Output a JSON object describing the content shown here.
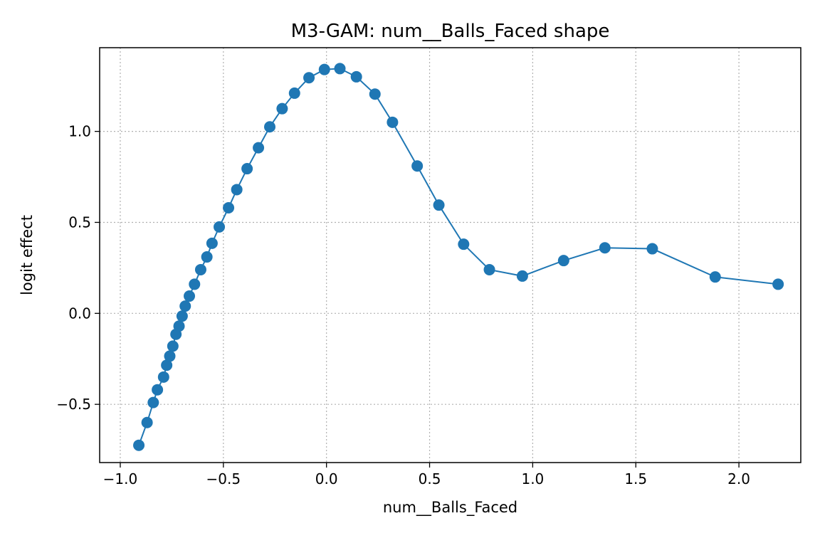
{
  "chart_data": {
    "type": "line",
    "title": "M3-GAM: num__Balls_Faced shape",
    "xlabel": "num__Balls_Faced",
    "ylabel": "logit effect",
    "xlim": [
      -1.1,
      2.3
    ],
    "ylim": [
      -0.82,
      1.46
    ],
    "xticks": [
      -1.0,
      -0.5,
      0.0,
      0.5,
      1.0,
      1.5,
      2.0
    ],
    "xtick_labels": [
      "−1.0",
      "−0.5",
      "0.0",
      "0.5",
      "1.0",
      "1.5",
      "2.0"
    ],
    "yticks": [
      -0.5,
      0.0,
      0.5,
      1.0
    ],
    "ytick_labels": [
      "−0.5",
      "0.0",
      "0.5",
      "1.0"
    ],
    "grid": true,
    "grid_style": "dotted",
    "marker": "circle",
    "color": "#1f77b4",
    "series": [
      {
        "x": [
          -0.91,
          -0.87,
          -0.84,
          -0.82,
          -0.79,
          -0.775,
          -0.76,
          -0.745,
          -0.73,
          -0.715,
          -0.7,
          -0.685,
          -0.665,
          -0.64,
          -0.61,
          -0.58,
          -0.555,
          -0.52,
          -0.475,
          -0.435,
          -0.385,
          -0.33,
          -0.275,
          -0.215,
          -0.155,
          -0.085,
          -0.01,
          0.065,
          0.145,
          0.235,
          0.32,
          0.44,
          0.545,
          0.665,
          0.79,
          0.95,
          1.15,
          1.35,
          1.58,
          1.885,
          2.19
        ],
        "y": [
          -0.725,
          -0.6,
          -0.49,
          -0.42,
          -0.35,
          -0.285,
          -0.235,
          -0.18,
          -0.115,
          -0.07,
          -0.015,
          0.04,
          0.095,
          0.16,
          0.24,
          0.31,
          0.385,
          0.475,
          0.58,
          0.68,
          0.795,
          0.91,
          1.025,
          1.125,
          1.21,
          1.295,
          1.34,
          1.345,
          1.3,
          1.205,
          1.05,
          0.81,
          0.595,
          0.38,
          0.24,
          0.205,
          0.29,
          0.36,
          0.355,
          0.2,
          0.16
        ]
      }
    ]
  }
}
